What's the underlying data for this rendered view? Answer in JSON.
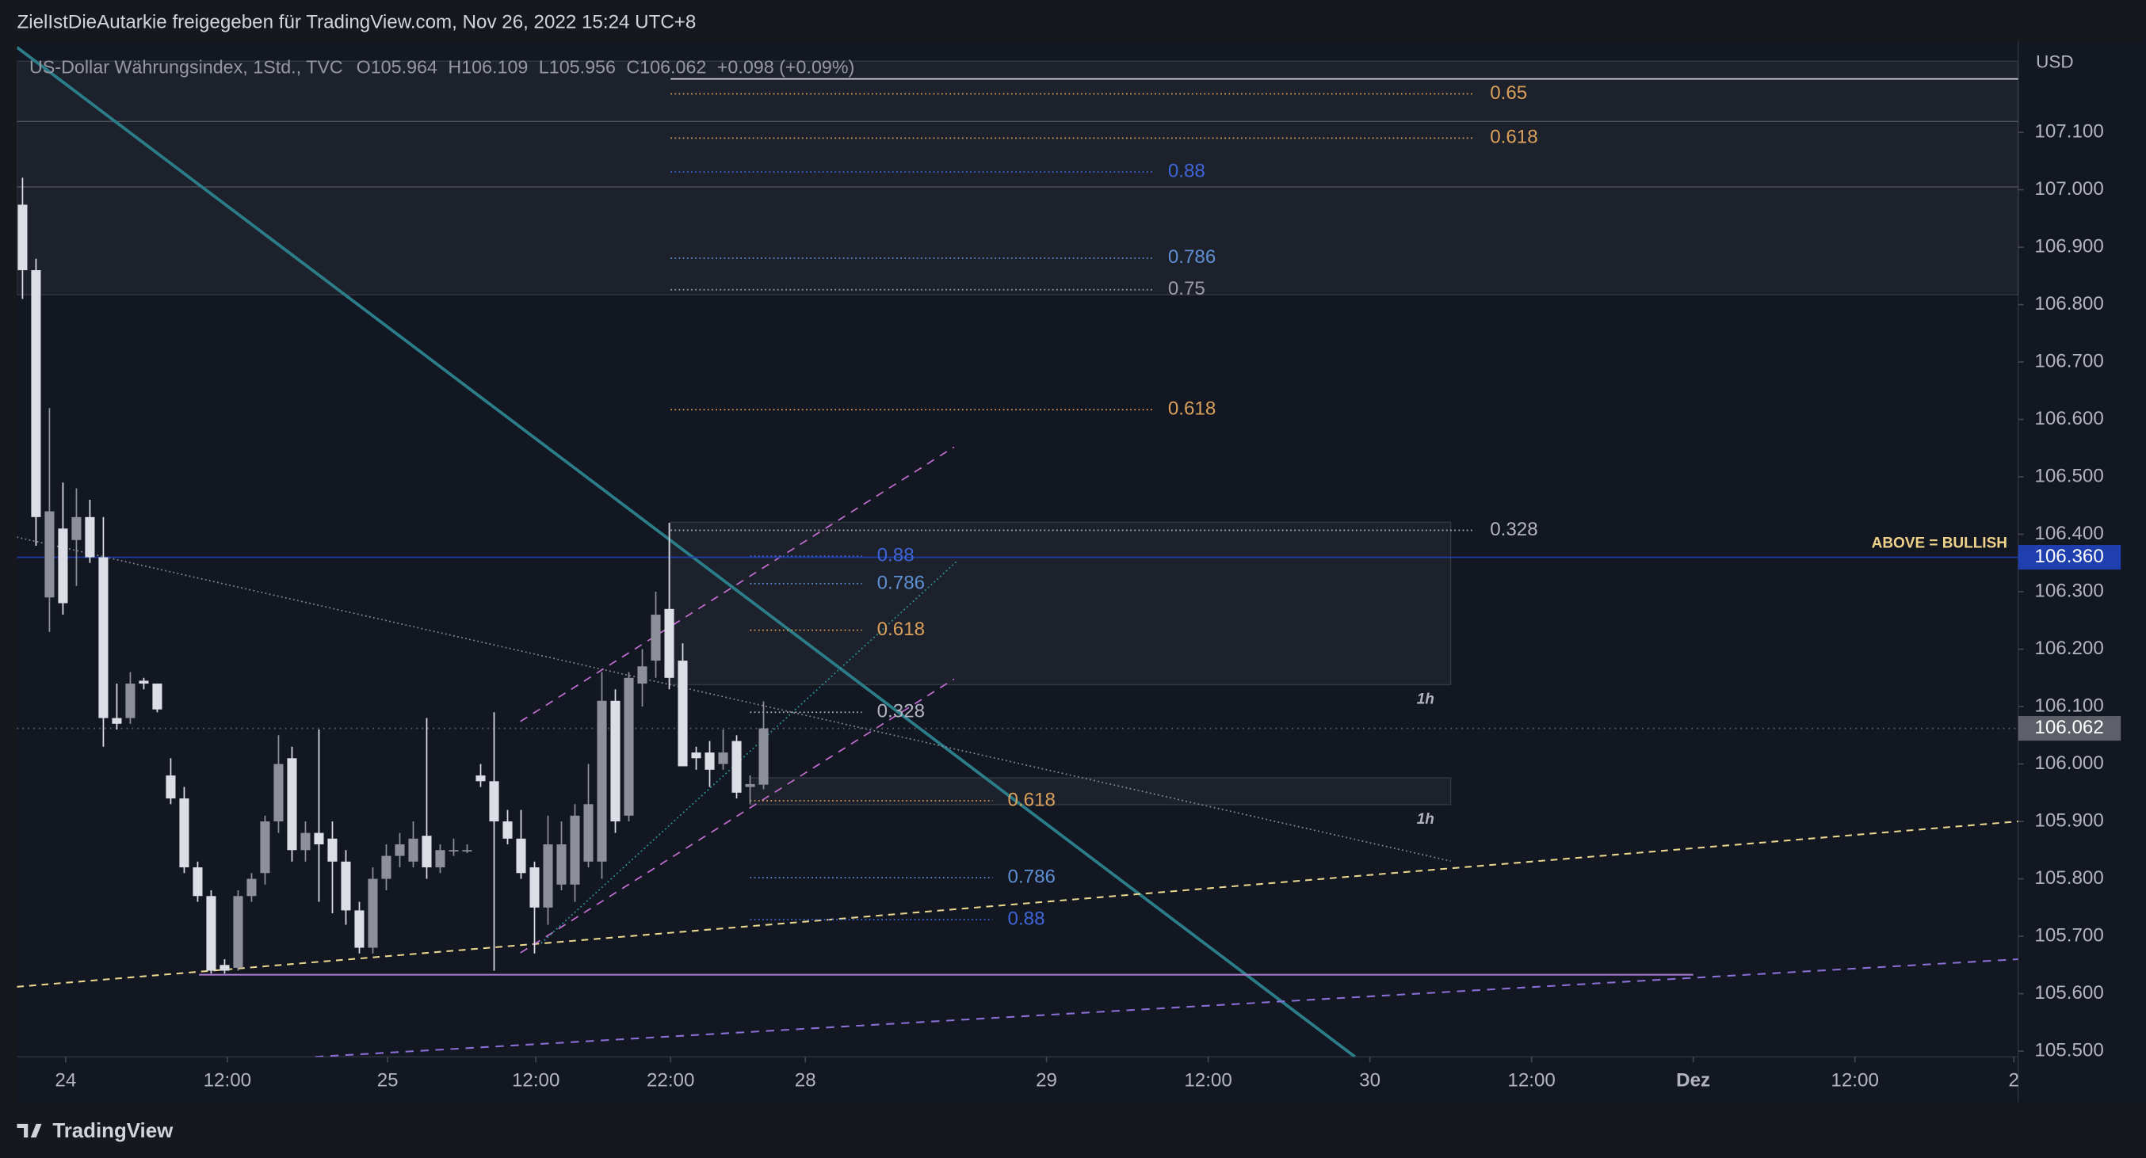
{
  "header": {
    "title": "ZielIstDieAutarkie freigegeben für TradingView.com, Nov 26, 2022 15:24 UTC+8",
    "footer": "TradingView"
  },
  "chart_data": {
    "type": "candlestick",
    "title": "US-Dollar Währungsindex, 1Std., TVC",
    "legend": {
      "o_label": "O",
      "o": "105.964",
      "h_label": "H",
      "h": "106.109",
      "l_label": "L",
      "l": "105.956",
      "c_label": "C",
      "c": "106.062",
      "change": "+0.098 (+0.09%)"
    },
    "currency": "USD",
    "open": [
      106.974,
      106.86,
      106.29,
      106.41,
      106.39,
      106.43,
      106.36,
      106.08,
      106.08,
      106.145,
      106.14,
      105.98,
      105.94,
      105.82,
      105.77,
      105.65,
      105.645,
      105.77,
      105.81,
      105.9,
      106.01,
      105.85,
      105.88,
      105.87,
      105.83,
      105.745,
      105.68,
      105.8,
      105.84,
      105.83,
      105.875,
      105.82,
      105.85,
      105.85,
      105.98,
      105.97,
      105.9,
      105.87,
      105.82,
      105.75,
      105.79,
      105.79,
      105.83,
      105.83,
      106.11,
      105.91,
      106.14,
      106.18,
      106.27,
      106.18,
      106.02,
      106.02,
      106.0,
      106.04,
      105.96,
      105.964
    ],
    "high": [
      107.021,
      106.88,
      106.62,
      106.49,
      106.48,
      106.46,
      106.43,
      106.14,
      106.16,
      106.15,
      106.14,
      106.01,
      105.96,
      105.83,
      105.78,
      105.66,
      105.78,
      105.81,
      105.91,
      106.05,
      106.03,
      105.9,
      106.06,
      105.9,
      105.85,
      105.76,
      105.82,
      105.86,
      105.88,
      105.9,
      106.08,
      105.86,
      105.87,
      105.86,
      106.0,
      106.09,
      105.92,
      105.92,
      105.83,
      105.91,
      105.9,
      105.93,
      106.0,
      106.16,
      106.13,
      106.16,
      106.2,
      106.3,
      106.42,
      106.21,
      106.03,
      106.04,
      106.06,
      106.05,
      105.98,
      106.109
    ],
    "low": [
      106.81,
      106.38,
      106.23,
      106.26,
      106.31,
      106.35,
      106.03,
      106.06,
      106.07,
      106.13,
      106.09,
      105.93,
      105.81,
      105.76,
      105.635,
      105.635,
      105.64,
      105.76,
      105.79,
      105.88,
      105.83,
      105.83,
      105.76,
      105.74,
      105.72,
      105.67,
      105.67,
      105.78,
      105.82,
      105.82,
      105.8,
      105.81,
      105.84,
      105.845,
      105.96,
      105.64,
      105.86,
      105.8,
      105.67,
      105.72,
      105.78,
      105.76,
      105.82,
      105.8,
      105.88,
      105.9,
      106.1,
      106.15,
      106.13,
      105.996,
      105.99,
      105.96,
      105.99,
      105.94,
      105.93,
      105.956
    ],
    "close": [
      106.86,
      106.43,
      106.44,
      106.28,
      106.43,
      106.36,
      106.08,
      106.07,
      106.14,
      106.14,
      106.095,
      105.94,
      105.82,
      105.77,
      105.64,
      105.64,
      105.77,
      105.8,
      105.9,
      106.0,
      105.85,
      105.88,
      105.86,
      105.83,
      105.745,
      105.68,
      105.8,
      105.84,
      105.86,
      105.87,
      105.82,
      105.85,
      105.85,
      105.85,
      105.97,
      105.9,
      105.87,
      105.81,
      105.75,
      105.86,
      105.86,
      105.91,
      105.93,
      106.11,
      105.9,
      106.15,
      106.17,
      106.26,
      106.15,
      105.996,
      106.01,
      105.99,
      106.02,
      105.95,
      105.965,
      106.062
    ],
    "up_color": "#8d9099",
    "down_color": "#dcdee5",
    "xlim": [
      -0.41,
      148.12
    ],
    "xticks": [
      {
        "value": 3.2,
        "label": "24"
      },
      {
        "value": 15.2,
        "label": "12:00"
      },
      {
        "value": 27.1,
        "label": "25"
      },
      {
        "value": 38.1,
        "label": "12:00"
      },
      {
        "value": 48.1,
        "label": "22:00"
      },
      {
        "value": 58.1,
        "label": "28"
      },
      {
        "value": 76,
        "label": "29"
      },
      {
        "value": 88,
        "label": "12:00"
      },
      {
        "value": 100,
        "label": "30"
      },
      {
        "value": 112,
        "label": "12:00"
      },
      {
        "value": 124,
        "label": "Dez"
      },
      {
        "value": 136,
        "label": "12:00"
      },
      {
        "value": 147.8,
        "label": "2"
      }
    ],
    "ylim": [
      105.49,
      107.23
    ],
    "yticks": [
      {
        "value": 107.1,
        "label": "107.100"
      },
      {
        "value": 107,
        "label": "107.000"
      },
      {
        "value": 106.9,
        "label": "106.900"
      },
      {
        "value": 106.8,
        "label": "106.800"
      },
      {
        "value": 106.7,
        "label": "106.700"
      },
      {
        "value": 106.6,
        "label": "106.600"
      },
      {
        "value": 106.5,
        "label": "106.500"
      },
      {
        "value": 106.4,
        "label": "106.400"
      },
      {
        "value": 106.3,
        "label": "106.300"
      },
      {
        "value": 106.2,
        "label": "106.200"
      },
      {
        "value": 106.1,
        "label": "106.100"
      },
      {
        "value": 106,
        "label": "106.000"
      },
      {
        "value": 105.9,
        "label": "105.900"
      },
      {
        "value": 105.8,
        "label": "105.800"
      },
      {
        "value": 105.7,
        "label": "105.700"
      },
      {
        "value": 105.6,
        "label": "105.600"
      },
      {
        "value": 105.5,
        "label": "105.500"
      }
    ],
    "grid": false,
    "zones": [
      {
        "x1": -0.41,
        "x2": 148.12,
        "y1": 107.224,
        "y2": 107.119
      },
      {
        "x1": -0.41,
        "x2": 148.12,
        "y1": 107.119,
        "y2": 107.005
      },
      {
        "x1": -0.41,
        "x2": 148.12,
        "y1": 107.005,
        "y2": 106.817
      },
      {
        "x1": 48.1,
        "x2": 106,
        "y1": 106.421,
        "y2": 106.138,
        "label": "1h"
      },
      {
        "x1": 54,
        "x2": 106,
        "y1": 105.976,
        "y2": 105.929,
        "label": "1h"
      }
    ],
    "drawings": [
      {
        "x1": 48.1,
        "x2": 148.12,
        "y1": 107.193,
        "y2": 107.193,
        "color": "#d1d4dc",
        "dash": "none",
        "width": 1
      },
      {
        "x1": -0.41,
        "x2": 98.9,
        "y1": 107.248,
        "y2": 105.49,
        "color": "#2a7d89",
        "dash": "none",
        "width": 2.2
      },
      {
        "x1": -0.41,
        "x2": 106,
        "y1": 106.395,
        "y2": 105.831,
        "color": "#8a8d96",
        "dash": "1 2",
        "width": 1
      },
      {
        "x1": -0.41,
        "x2": 148.12,
        "y1": 105.612,
        "y2": 105.9,
        "color": "#e8d68e",
        "dash": "5 4",
        "width": 1.2
      },
      {
        "x1": 21.73,
        "x2": 148.12,
        "y1": 105.49,
        "y2": 105.66,
        "color": "#8b6fd6",
        "dash": "6 5",
        "width": 1.2
      },
      {
        "x1": 36.95,
        "x2": 69.14,
        "y1": 106.074,
        "y2": 106.552,
        "color": "#c26fd1",
        "dash": "6 5",
        "width": 1
      },
      {
        "x1": 36.95,
        "x2": 69.14,
        "y1": 105.671,
        "y2": 106.148,
        "color": "#c26fd1",
        "dash": "6 5",
        "width": 1
      },
      {
        "x1": 38.5,
        "x2": 69.44,
        "y1": 105.688,
        "y2": 106.355,
        "color": "#2a9d9d",
        "dash": "1 2",
        "width": 1
      },
      {
        "x1": 13.1,
        "x2": 124,
        "y1": 105.633,
        "y2": 105.633,
        "color": "#b07fd6",
        "dash": "none",
        "width": 1.2
      }
    ],
    "fib_levels": [
      {
        "label": "0.65",
        "value": 107.167,
        "x1": 48.1,
        "x2": 107.8,
        "color": "#d9a05b"
      },
      {
        "label": "0.618",
        "value": 107.09,
        "x1": 48.1,
        "x2": 107.8,
        "color": "#d9a05b"
      },
      {
        "label": "0.88",
        "value": 107.031,
        "x1": 48.1,
        "x2": 83.9,
        "color": "#3f66d8"
      },
      {
        "label": "0.786",
        "value": 106.881,
        "x1": 48.1,
        "x2": 83.9,
        "color": "#5d8fd2"
      },
      {
        "label": "0.75",
        "value": 106.826,
        "x1": 48.1,
        "x2": 83.9,
        "color": "#9a9ca3"
      },
      {
        "label": "0.618",
        "value": 106.617,
        "x1": 48.1,
        "x2": 83.9,
        "color": "#d9a05b"
      },
      {
        "label": "0.328",
        "value": 106.407,
        "x1": 48.1,
        "x2": 107.8,
        "color": "#b2b5be"
      },
      {
        "label": "0.88",
        "value": 106.362,
        "x1": 54,
        "x2": 62.3,
        "color": "#3f66d8"
      },
      {
        "label": "0.786",
        "value": 106.314,
        "x1": 54,
        "x2": 62.3,
        "color": "#5d8fd2"
      },
      {
        "label": "0.618",
        "value": 106.233,
        "x1": 54,
        "x2": 62.3,
        "color": "#d9a05b"
      },
      {
        "label": "0.328",
        "value": 106.09,
        "x1": 54,
        "x2": 62.3,
        "color": "#b2b5be"
      },
      {
        "label": "0.618",
        "value": 105.936,
        "x1": 54,
        "x2": 72,
        "color": "#d9a05b"
      },
      {
        "label": "0.786",
        "value": 105.802,
        "x1": 54,
        "x2": 72,
        "color": "#5d8fd2"
      },
      {
        "label": "0.88",
        "value": 105.729,
        "x1": 54,
        "x2": 72,
        "color": "#3f66d8"
      }
    ],
    "price_lines": [
      {
        "value": 106.36,
        "label": "106.360",
        "text": "ABOVE = BULLISH",
        "color": "#1f3fae",
        "dash": "none"
      },
      {
        "value": 106.062,
        "label": "106.062",
        "color": "#5d6068",
        "dash": "1 3"
      }
    ]
  }
}
